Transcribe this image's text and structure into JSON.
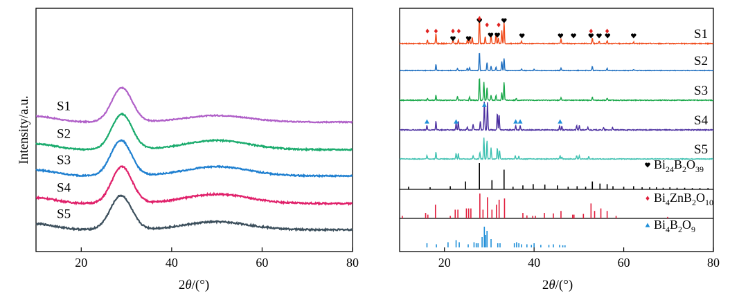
{
  "chart_data": [
    {
      "type": "line",
      "title": "",
      "xlabel_prefix": "2",
      "xlabel_theta": "θ",
      "xlabel_suffix": "/(°)",
      "ylabel": "Intensity/a.u.",
      "xlim": [
        10,
        80
      ],
      "xticks": [
        20,
        40,
        60,
        80
      ],
      "yticks": "none",
      "series": [
        {
          "name": "S1",
          "color": "#b060c8",
          "baseline": 4.3,
          "peak_x": 29,
          "peak_height": 1.3,
          "peak_width": 3.2,
          "hump_x": 50,
          "hump_height": 0.25,
          "hump_width": 10,
          "noise": 0.02
        },
        {
          "name": "S2",
          "color": "#1aab6d",
          "baseline": 3.25,
          "peak_x": 29,
          "peak_height": 1.35,
          "peak_width": 3.2,
          "hump_x": 50,
          "hump_height": 0.35,
          "hump_width": 10,
          "noise": 0.025
        },
        {
          "name": "S3",
          "color": "#1e7fd0",
          "baseline": 2.25,
          "peak_x": 28.8,
          "peak_height": 1.35,
          "peak_width": 3.2,
          "hump_x": 50,
          "hump_height": 0.35,
          "hump_width": 10,
          "noise": 0.025
        },
        {
          "name": "S4",
          "color": "#e0206a",
          "baseline": 1.2,
          "peak_x": 29,
          "peak_height": 1.4,
          "peak_width": 3.2,
          "hump_x": 50,
          "hump_height": 0.35,
          "hump_width": 10,
          "noise": 0.03
        },
        {
          "name": "S5",
          "color": "#3c4f5c",
          "baseline": 0.2,
          "peak_x": 28.8,
          "peak_height": 1.3,
          "peak_width": 3.3,
          "hump_x": 50,
          "hump_height": 0.3,
          "hump_width": 10,
          "noise": 0.03
        }
      ]
    },
    {
      "type": "line",
      "title": "",
      "xlabel_prefix": "2",
      "xlabel_theta": "θ",
      "xlabel_suffix": "/(°)",
      "ylabel": "",
      "xlim": [
        10,
        80
      ],
      "xticks": [
        20,
        40,
        60,
        80
      ],
      "series": [
        {
          "name": "S1",
          "color": "#f04a1a",
          "peaks": [
            [
              16.2,
              0.12
            ],
            [
              18.1,
              0.35
            ],
            [
              21.9,
              0.15
            ],
            [
              23.1,
              0.15
            ],
            [
              25.1,
              0.12
            ],
            [
              25.6,
              0.2
            ],
            [
              26.2,
              0.2
            ],
            [
              27.8,
              1.0
            ],
            [
              29.1,
              0.25
            ],
            [
              30.4,
              0.3
            ],
            [
              31.5,
              0.35
            ],
            [
              32.0,
              0.2
            ],
            [
              32.8,
              0.45
            ],
            [
              33.3,
              0.75
            ],
            [
              37.2,
              0.08
            ],
            [
              46.0,
              0.15
            ],
            [
              53.0,
              0.2
            ],
            [
              54.5,
              0.08
            ],
            [
              56.3,
              0.1
            ],
            [
              62.2,
              0.05
            ]
          ]
        },
        {
          "name": "S2",
          "color": "#1f6fc0",
          "peaks": [
            [
              18.1,
              0.3
            ],
            [
              22.9,
              0.1
            ],
            [
              25.1,
              0.12
            ],
            [
              25.6,
              0.15
            ],
            [
              27.8,
              0.9
            ],
            [
              29.5,
              0.4
            ],
            [
              30.4,
              0.2
            ],
            [
              31.5,
              0.18
            ],
            [
              32.8,
              0.45
            ],
            [
              33.3,
              0.6
            ],
            [
              37.2,
              0.08
            ],
            [
              40.0,
              0.05
            ],
            [
              46.0,
              0.12
            ],
            [
              53.0,
              0.2
            ],
            [
              56.3,
              0.1
            ],
            [
              62.2,
              0.05
            ]
          ]
        },
        {
          "name": "S3",
          "color": "#1aa84a",
          "peaks": [
            [
              16.2,
              0.08
            ],
            [
              18.1,
              0.2
            ],
            [
              22.9,
              0.15
            ],
            [
              25.6,
              0.12
            ],
            [
              27.8,
              0.9
            ],
            [
              28.8,
              0.7
            ],
            [
              29.5,
              0.5
            ],
            [
              30.4,
              0.2
            ],
            [
              31.5,
              0.2
            ],
            [
              32.8,
              0.3
            ],
            [
              33.3,
              0.7
            ],
            [
              36.0,
              0.08
            ],
            [
              46.0,
              0.1
            ],
            [
              53.0,
              0.12
            ],
            [
              56.3,
              0.08
            ]
          ]
        },
        {
          "name": "S4",
          "color": "#4b2fa0",
          "peaks": [
            [
              16.1,
              0.15
            ],
            [
              18.1,
              0.3
            ],
            [
              22.6,
              0.25
            ],
            [
              23.1,
              0.3
            ],
            [
              25.1,
              0.1
            ],
            [
              26.4,
              0.2
            ],
            [
              28.0,
              0.3
            ],
            [
              28.9,
              1.0
            ],
            [
              29.6,
              0.95
            ],
            [
              31.8,
              0.6
            ],
            [
              32.2,
              0.55
            ],
            [
              35.9,
              0.15
            ],
            [
              36.9,
              0.15
            ],
            [
              45.7,
              0.15
            ],
            [
              46.2,
              0.12
            ],
            [
              49.5,
              0.15
            ],
            [
              50.1,
              0.15
            ],
            [
              52.0,
              0.1
            ],
            [
              55.5,
              0.08
            ],
            [
              57.5,
              0.08
            ]
          ]
        },
        {
          "name": "S5",
          "color": "#3cc0b0",
          "peaks": [
            [
              16.1,
              0.15
            ],
            [
              18.1,
              0.3
            ],
            [
              22.6,
              0.25
            ],
            [
              23.1,
              0.25
            ],
            [
              26.4,
              0.15
            ],
            [
              27.9,
              0.3
            ],
            [
              28.8,
              0.95
            ],
            [
              29.5,
              0.85
            ],
            [
              30.4,
              0.5
            ],
            [
              31.8,
              0.5
            ],
            [
              32.3,
              0.4
            ],
            [
              35.8,
              0.15
            ],
            [
              36.6,
              0.12
            ],
            [
              45.8,
              0.15
            ],
            [
              46.2,
              0.1
            ],
            [
              49.5,
              0.15
            ],
            [
              50.1,
              0.15
            ],
            [
              52.2,
              0.1
            ]
          ]
        }
      ],
      "markers": [
        {
          "series": "S1",
          "symbol": "heart",
          "color": "#000000",
          "x": [
            27.8,
            25.4,
            31.8,
            30.3,
            33.3,
            37.3,
            45.9,
            48.8,
            52.7,
            54.5,
            56.4,
            62.2,
            21.9
          ]
        },
        {
          "series": "S1",
          "symbol": "diamond",
          "color": "#e0201e",
          "x": [
            16.2,
            18.1,
            21.9,
            23.2,
            27.8,
            29.5,
            32.1,
            52.7,
            56.3
          ]
        },
        {
          "series": "S4",
          "symbol": "triangle",
          "color": "#1f8fd8",
          "x": [
            16.1,
            22.6,
            28.9,
            35.9,
            36.9,
            45.8
          ]
        }
      ],
      "reference_patterns": [
        {
          "formula": "Bi24B2O39",
          "formula_parts": [
            "Bi",
            "24",
            "B",
            "2",
            "O",
            "39"
          ],
          "color": "#000000",
          "legend_symbol": "heart",
          "sticks": [
            [
              12.0,
              0.1
            ],
            [
              16.8,
              0.08
            ],
            [
              21.3,
              0.12
            ],
            [
              24.7,
              0.3
            ],
            [
              27.8,
              1.0
            ],
            [
              30.6,
              0.35
            ],
            [
              33.3,
              0.75
            ],
            [
              35.3,
              0.1
            ],
            [
              37.5,
              0.15
            ],
            [
              39.8,
              0.2
            ],
            [
              42.4,
              0.18
            ],
            [
              45.2,
              0.15
            ],
            [
              47.6,
              0.1
            ],
            [
              49.6,
              0.12
            ],
            [
              51.5,
              0.1
            ],
            [
              53.0,
              0.3
            ],
            [
              54.7,
              0.22
            ],
            [
              56.3,
              0.2
            ],
            [
              57.6,
              0.12
            ],
            [
              60.0,
              0.1
            ],
            [
              62.2,
              0.12
            ],
            [
              64.1,
              0.08
            ],
            [
              65.8,
              0.08
            ],
            [
              67.3,
              0.08
            ],
            [
              68.8,
              0.06
            ],
            [
              70.3,
              0.08
            ],
            [
              71.9,
              0.06
            ],
            [
              73.6,
              0.06
            ],
            [
              75.3,
              0.05
            ],
            [
              77.0,
              0.05
            ],
            [
              78.8,
              0.05
            ]
          ]
        },
        {
          "formula": "Bi4ZnB2O10",
          "formula_parts": [
            "Bi",
            "4",
            "ZnB",
            "2",
            "O",
            "10"
          ],
          "color": "#e01e3c",
          "legend_symbol": "diamond",
          "sticks": [
            [
              10.6,
              0.1
            ],
            [
              15.8,
              0.22
            ],
            [
              16.3,
              0.15
            ],
            [
              18.0,
              0.55
            ],
            [
              21.3,
              0.1
            ],
            [
              22.4,
              0.35
            ],
            [
              23.0,
              0.35
            ],
            [
              24.9,
              0.4
            ],
            [
              25.4,
              0.4
            ],
            [
              25.9,
              0.4
            ],
            [
              27.9,
              1.0
            ],
            [
              28.6,
              0.35
            ],
            [
              29.6,
              0.85
            ],
            [
              30.6,
              0.35
            ],
            [
              31.6,
              0.55
            ],
            [
              32.2,
              0.75
            ],
            [
              33.4,
              0.8
            ],
            [
              37.5,
              0.22
            ],
            [
              38.4,
              0.12
            ],
            [
              39.7,
              0.1
            ],
            [
              40.3,
              0.1
            ],
            [
              42.3,
              0.22
            ],
            [
              44.3,
              0.2
            ],
            [
              46.0,
              0.3
            ],
            [
              48.6,
              0.15
            ],
            [
              48.9,
              0.15
            ],
            [
              51.0,
              0.18
            ],
            [
              52.7,
              0.6
            ],
            [
              53.5,
              0.3
            ],
            [
              54.9,
              0.4
            ],
            [
              56.3,
              0.3
            ],
            [
              58.3,
              0.1
            ],
            [
              69.8,
              0.06
            ]
          ]
        },
        {
          "formula": "Bi4B2O9",
          "formula_parts": [
            "Bi",
            "4",
            "B",
            "2",
            "O",
            "9"
          ],
          "color": "#1f8fd8",
          "legend_symbol": "triangle",
          "sticks": [
            [
              16.1,
              0.2
            ],
            [
              18.2,
              0.15
            ],
            [
              20.8,
              0.25
            ],
            [
              22.6,
              0.35
            ],
            [
              23.3,
              0.25
            ],
            [
              25.3,
              0.15
            ],
            [
              26.6,
              0.25
            ],
            [
              27.1,
              0.2
            ],
            [
              27.5,
              0.2
            ],
            [
              28.4,
              0.5
            ],
            [
              28.9,
              1.0
            ],
            [
              29.2,
              0.6
            ],
            [
              29.5,
              0.8
            ],
            [
              30.4,
              0.4
            ],
            [
              31.9,
              0.2
            ],
            [
              32.4,
              0.2
            ],
            [
              35.6,
              0.2
            ],
            [
              36.1,
              0.25
            ],
            [
              36.6,
              0.2
            ],
            [
              37.2,
              0.15
            ],
            [
              38.4,
              0.15
            ],
            [
              39.4,
              0.12
            ],
            [
              40.0,
              0.2
            ],
            [
              41.5,
              0.12
            ],
            [
              43.3,
              0.12
            ],
            [
              44.3,
              0.15
            ],
            [
              45.7,
              0.12
            ],
            [
              46.4,
              0.1
            ],
            [
              46.9,
              0.1
            ]
          ]
        }
      ]
    }
  ]
}
